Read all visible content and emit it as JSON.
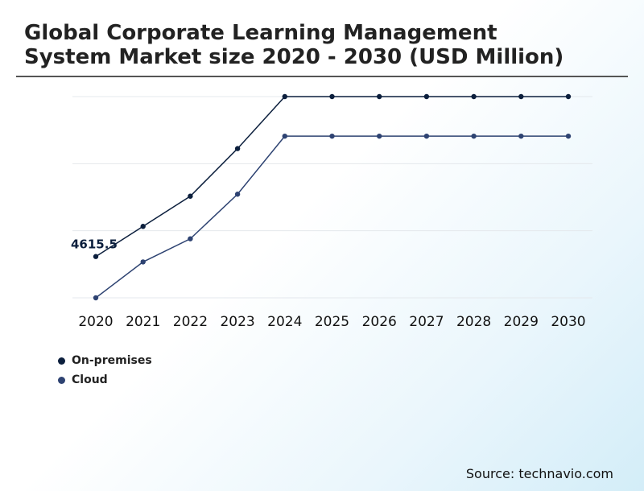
{
  "title": "Global Corporate Learning Management System Market size 2020 - 2030 (USD Million)",
  "source": "Source: technavio.com",
  "colors": {
    "on_premises": "#0c1f3d",
    "cloud": "#2e4372",
    "grid": "#e4e8ec"
  },
  "chart_data": {
    "type": "line",
    "title": "Global Corporate Learning Management System Market size 2020 - 2030 (USD Million)",
    "xlabel": "",
    "ylabel": "",
    "categories": [
      "2020",
      "2021",
      "2022",
      "2023",
      "2024",
      "2025",
      "2026",
      "2027",
      "2028",
      "2029",
      "2030"
    ],
    "ylim": [
      4000,
      7000
    ],
    "grid": true,
    "legend_position": "bottom-left",
    "series": [
      {
        "name": "On-premises",
        "color": "#0c1f3d",
        "values": [
          4615.5,
          5065,
          5515,
          6225,
          7000,
          7000,
          7000,
          7000,
          7000,
          7000,
          7000
        ]
      },
      {
        "name": "Cloud",
        "color": "#2e4372",
        "values": [
          4000,
          4535,
          4880,
          5545,
          6410,
          6410,
          6410,
          6410,
          6410,
          6410,
          6410
        ]
      }
    ],
    "annotations": [
      {
        "series": "On-premises",
        "category": "2020",
        "label": "4615.5"
      }
    ]
  }
}
